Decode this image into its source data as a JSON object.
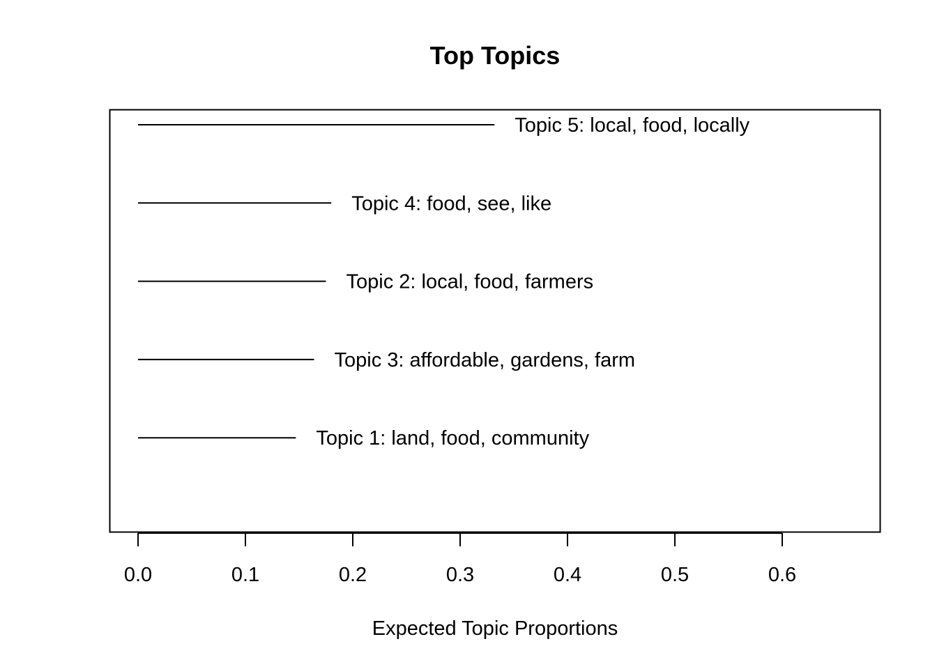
{
  "chart_data": {
    "type": "bar",
    "title": "Top Topics",
    "xlabel": "Expected Topic Proportions",
    "ylabel": "",
    "xlim": [
      -0.027,
      0.69
    ],
    "xticks": [
      0.0,
      0.1,
      0.2,
      0.3,
      0.4,
      0.5,
      0.6
    ],
    "xtick_labels": [
      "0.0",
      "0.1",
      "0.2",
      "0.3",
      "0.4",
      "0.5",
      "0.6"
    ],
    "grid": false,
    "legend": "none",
    "orientation": "horizontal",
    "bars": [
      {
        "label": "Topic 5: local, food, locally",
        "value": 0.332
      },
      {
        "label": "Topic 4: food, see, like",
        "value": 0.18
      },
      {
        "label": "Topic 2: local, food, farmers",
        "value": 0.175
      },
      {
        "label": "Topic 3: affordable, gardens, farm",
        "value": 0.164
      },
      {
        "label": "Topic 1: land, food, community",
        "value": 0.147
      }
    ],
    "color": "#000000"
  }
}
